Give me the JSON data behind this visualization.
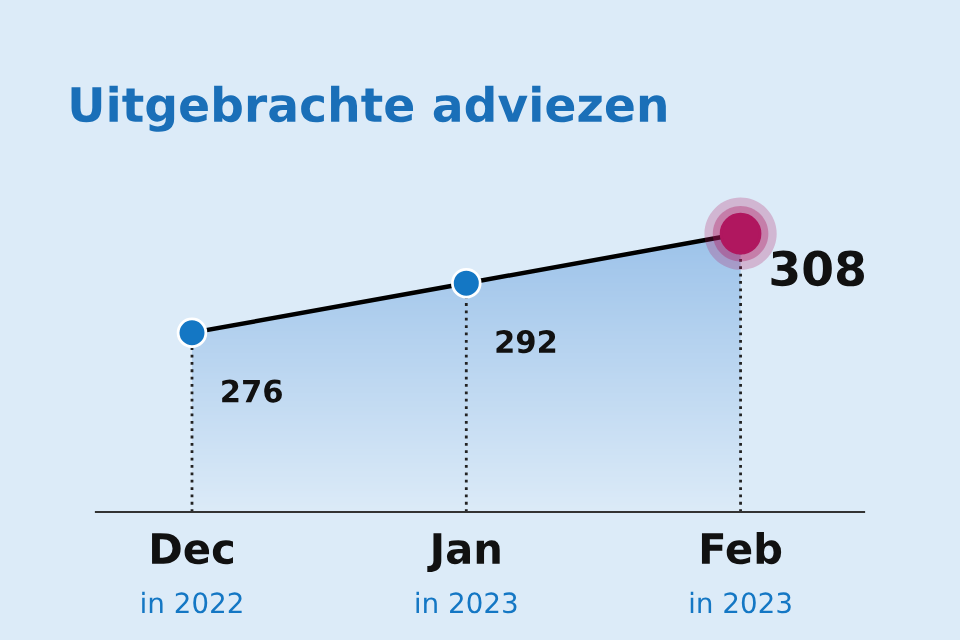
{
  "chart_data": {
    "type": "line",
    "title": "Uitgebrachte adviezen",
    "categories": [
      "Dec\nin 2022",
      "Jan\nin 2023",
      "Feb\nin 2023"
    ],
    "series": [
      {
        "color": "#000000",
        "values": [
          276,
          292,
          308
        ],
        "colors": [
          "#1477c4",
          "#1477c4",
          "#b0175f"
        ]
      }
    ],
    "data_labels": true,
    "marker": "circle",
    "line_style": "solid",
    "grid": "x",
    "legend": false
  }
}
